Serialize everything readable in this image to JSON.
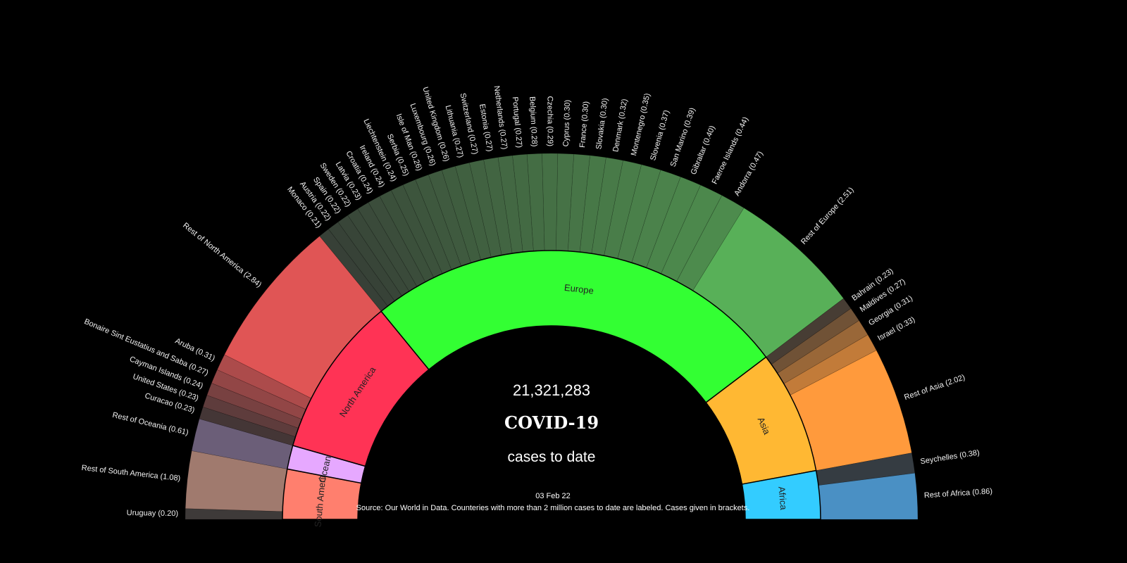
{
  "chart_data": {
    "type": "sunburst-semicircle",
    "total_label": "21,321,283",
    "title": "COVID-19",
    "subtitle": "cases to date",
    "date": "03 Feb 22",
    "source": "Source: Our World in Data. Counteries with more than 2 million cases to date are labeled. Cases given in brackets.",
    "groups": [
      {
        "name": "South America",
        "color": "#ff7f6e",
        "outer_color": "#a07a6e",
        "children": [
          {
            "name": "Uruguay",
            "value": 0.2
          },
          {
            "name": "Rest of South America",
            "value": 1.08
          }
        ]
      },
      {
        "name": "Oceania",
        "color": "#e6a8ff",
        "outer_color": "#6b5e78",
        "children": [
          {
            "name": "Rest of Oceania",
            "value": 0.61
          }
        ]
      },
      {
        "name": "North America",
        "color": "#ff3355",
        "outer_color": "#e05555",
        "children": [
          {
            "name": "Curacao",
            "value": 0.23
          },
          {
            "name": "United States",
            "value": 0.23
          },
          {
            "name": "Cayman Islands",
            "value": 0.24
          },
          {
            "name": "Bonaire Sint Eustatius and Saba",
            "value": 0.27
          },
          {
            "name": "Aruba",
            "value": 0.31
          },
          {
            "name": "Rest of North America",
            "value": 2.84
          }
        ]
      },
      {
        "name": "Europe",
        "color": "#33ff33",
        "outer_color": "#58b058",
        "children": [
          {
            "name": "Monaco",
            "value": 0.21
          },
          {
            "name": "Austria",
            "value": 0.22
          },
          {
            "name": "Spain",
            "value": 0.22
          },
          {
            "name": "Sweden",
            "value": 0.22
          },
          {
            "name": "Latvia",
            "value": 0.23
          },
          {
            "name": "Croatia",
            "value": 0.24
          },
          {
            "name": "Ireland",
            "value": 0.24
          },
          {
            "name": "Liechtenstein",
            "value": 0.24
          },
          {
            "name": "Serbia",
            "value": 0.25
          },
          {
            "name": "Isle of Man",
            "value": 0.26
          },
          {
            "name": "Luxembourg",
            "value": 0.26
          },
          {
            "name": "United Kingdom",
            "value": 0.26
          },
          {
            "name": "Lithuania",
            "value": 0.27
          },
          {
            "name": "Switzerland",
            "value": 0.27
          },
          {
            "name": "Estonia",
            "value": 0.27
          },
          {
            "name": "Netherlands",
            "value": 0.27
          },
          {
            "name": "Portugal",
            "value": 0.27
          },
          {
            "name": "Belgium",
            "value": 0.28
          },
          {
            "name": "Czechia",
            "value": 0.29
          },
          {
            "name": "Cyprus",
            "value": 0.3
          },
          {
            "name": "France",
            "value": 0.3
          },
          {
            "name": "Slovakia",
            "value": 0.3
          },
          {
            "name": "Denmark",
            "value": 0.32
          },
          {
            "name": "Montenegro",
            "value": 0.35
          },
          {
            "name": "Slovenia",
            "value": 0.37
          },
          {
            "name": "San Marino",
            "value": 0.39
          },
          {
            "name": "Gibraltar",
            "value": 0.4
          },
          {
            "name": "Faeroe Islands",
            "value": 0.44
          },
          {
            "name": "Andorra",
            "value": 0.47
          },
          {
            "name": "Rest of Europe",
            "value": 2.51
          }
        ]
      },
      {
        "name": "Asia",
        "color": "#ffb833",
        "outer_color": "#ff9a3c",
        "children": [
          {
            "name": "Bahrain",
            "value": 0.23
          },
          {
            "name": "Maldives",
            "value": 0.27
          },
          {
            "name": "Georgia",
            "value": 0.31
          },
          {
            "name": "Israel",
            "value": 0.33
          },
          {
            "name": "Rest of Asia",
            "value": 2.02
          }
        ]
      },
      {
        "name": "Africa",
        "color": "#33ccff",
        "outer_color": "#4a90c4",
        "children": [
          {
            "name": "Seychelles",
            "value": 0.38
          },
          {
            "name": "Rest of Africa",
            "value": 0.86
          }
        ]
      }
    ]
  }
}
